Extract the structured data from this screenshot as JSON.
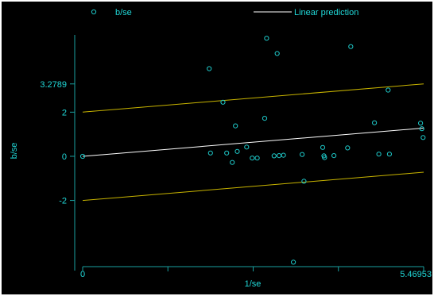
{
  "colors": {
    "background": "#000000",
    "frame": "#ffffff",
    "axis": "#1aa0a0",
    "text": "#20d8d8",
    "marker": "#1ec8c8",
    "fit_line": "#ffffff",
    "band_line": "#c8b400"
  },
  "legend": {
    "position": "top",
    "items": [
      {
        "label": "b/se",
        "marker": "circle"
      },
      {
        "label": "Linear prediction",
        "marker": "line"
      }
    ]
  },
  "chart_data": {
    "type": "scatter",
    "title": "",
    "xlabel": "1/se",
    "ylabel": "b/se",
    "xlim": [
      0,
      5.46953
    ],
    "ylim": [
      -5.0,
      5.5
    ],
    "grid": false,
    "x_ticks": [
      {
        "value": 0,
        "label": "0"
      },
      {
        "value": 1.367,
        "label": ""
      },
      {
        "value": 2.735,
        "label": ""
      },
      {
        "value": 4.102,
        "label": ""
      },
      {
        "value": 5.46953,
        "label": "5.46953"
      }
    ],
    "y_ticks": [
      {
        "value": 3.2789,
        "label": "3.2789"
      },
      {
        "value": 2,
        "label": "2"
      },
      {
        "value": 0,
        "label": "0"
      },
      {
        "value": -2,
        "label": "-2"
      }
    ],
    "series": [
      {
        "name": "b/se",
        "type": "scatter",
        "x": [
          0.0,
          2.03,
          2.05,
          2.25,
          2.31,
          2.4,
          2.45,
          2.48,
          2.63,
          2.72,
          2.8,
          2.92,
          2.95,
          3.07,
          3.12,
          3.15,
          3.22,
          3.38,
          3.52,
          3.55,
          3.85,
          3.87,
          3.88,
          4.03,
          4.25,
          4.3,
          4.68,
          4.75,
          4.9,
          4.92,
          5.42,
          5.44,
          5.46
        ],
        "y": [
          0.0,
          3.97,
          0.15,
          2.45,
          0.15,
          -0.28,
          1.38,
          0.22,
          0.42,
          -0.08,
          -0.08,
          1.72,
          5.35,
          0.02,
          4.66,
          0.03,
          0.05,
          -4.8,
          0.08,
          -1.13,
          0.4,
          0.02,
          -0.06,
          0.03,
          0.38,
          4.97,
          1.52,
          0.1,
          3.0,
          0.1,
          1.5,
          1.25,
          0.85
        ]
      },
      {
        "name": "Linear prediction",
        "type": "line",
        "x": [
          0,
          5.46953
        ],
        "y": [
          0.0,
          1.28
        ]
      },
      {
        "name": "",
        "type": "line",
        "x": [
          0,
          5.46953
        ],
        "y": [
          2.0,
          3.28
        ]
      },
      {
        "name": "",
        "type": "line",
        "x": [
          0,
          5.46953
        ],
        "y": [
          -2.0,
          -0.72
        ]
      }
    ]
  }
}
